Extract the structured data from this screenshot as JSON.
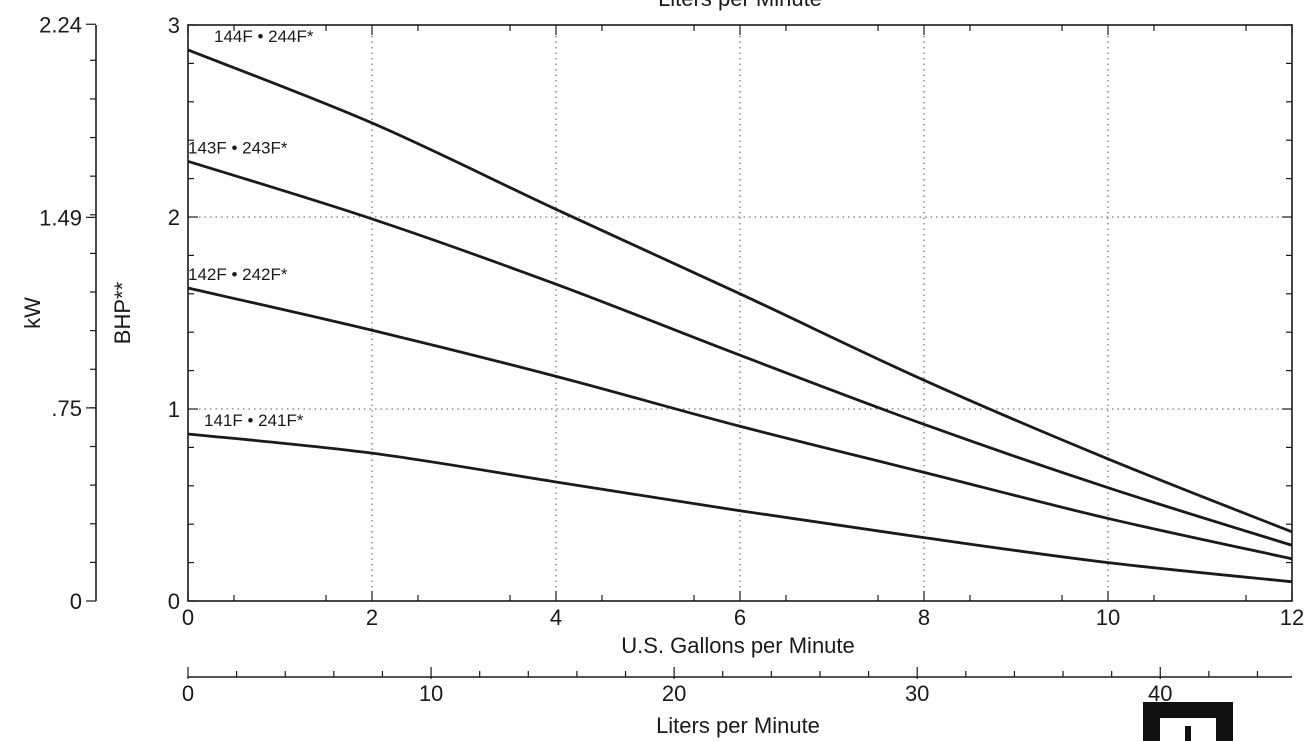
{
  "chart_data": {
    "type": "line",
    "title": "",
    "top_axis_label": "Liters per Minute",
    "xlabel": "U.S. Gallons per Minute",
    "secondary_xlabel": "Liters per Minute",
    "ylabel": "BHP**",
    "secondary_ylabel": "kW",
    "xlim": [
      0,
      12
    ],
    "ylim": [
      0,
      3
    ],
    "x_ticks": [
      "0",
      "2",
      "4",
      "6",
      "8",
      "10",
      "12"
    ],
    "y_ticks": [
      "0",
      "1",
      "2",
      "3"
    ],
    "kw_ticks": [
      {
        "value": 0,
        "label": "0"
      },
      {
        "value": 0.75,
        "label": ".75"
      },
      {
        "value": 1.49,
        "label": "1.49"
      },
      {
        "value": 2.24,
        "label": "2.24"
      }
    ],
    "lpm_ticks": [
      "0",
      "10",
      "20",
      "30",
      "40"
    ],
    "grid": true,
    "series": [
      {
        "name": "144F • 244F*",
        "x": [
          0,
          2,
          4,
          6,
          8,
          10,
          12
        ],
        "y": [
          2.87,
          2.49,
          2.04,
          1.6,
          1.15,
          0.74,
          0.36
        ]
      },
      {
        "name": "143F • 243F*",
        "x": [
          0,
          2,
          4,
          6,
          8,
          10,
          12
        ],
        "y": [
          2.29,
          1.99,
          1.65,
          1.28,
          0.92,
          0.59,
          0.29
        ]
      },
      {
        "name": "142F • 242F*",
        "x": [
          0,
          2,
          4,
          6,
          8,
          10,
          12
        ],
        "y": [
          1.63,
          1.41,
          1.17,
          0.91,
          0.67,
          0.43,
          0.22
        ]
      },
      {
        "name": "141F • 241F*",
        "x": [
          0,
          2,
          4,
          6,
          8,
          10,
          12
        ],
        "y": [
          0.87,
          0.77,
          0.62,
          0.47,
          0.33,
          0.2,
          0.1
        ]
      }
    ]
  }
}
